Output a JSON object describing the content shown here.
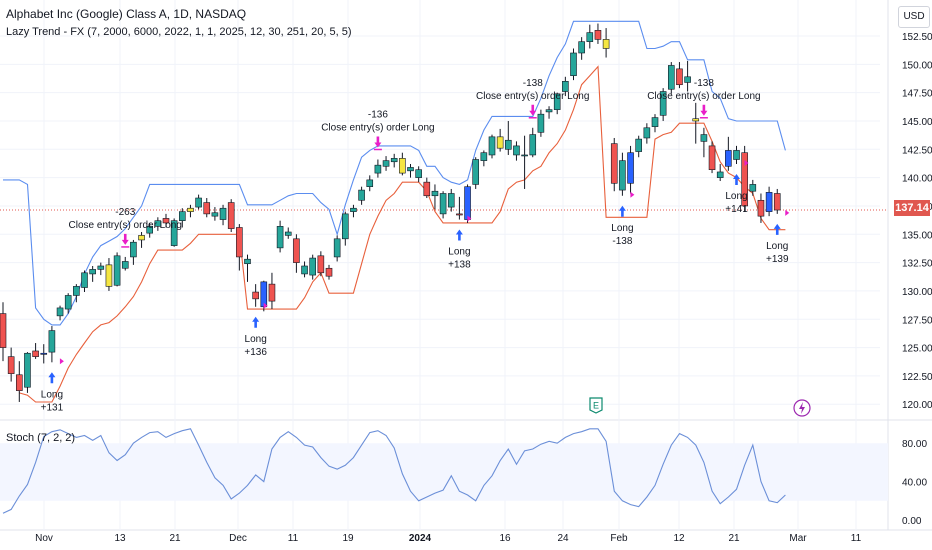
{
  "header": {
    "title": "Alphabet Inc (Google) Class A, 1D, NASDAQ",
    "indicator": "Lazy Trend - FX (7, 2000, 6000, 2022, 1, 1, 2025, 12, 30, 251, 20, 5, 5)",
    "stoch_label": "Stoch (7, 2, 2)",
    "currency": "USD",
    "last_price": "137.14"
  },
  "colors": {
    "up": "#26a69a",
    "down": "#ef5350",
    "blue_candle": "#2962ff",
    "yellow_candle": "#f5e642",
    "upper_band": "#5b8def",
    "lower_band": "#e8603c",
    "stoch_line": "#6b8fd8",
    "signal_up_arrow": "#2962ff",
    "signal_close_arrow": "#e91ec8",
    "grid": "#f0f3fa",
    "price_line": "#e0574f",
    "event_earnings": "#0c8a6e",
    "event_split": "#9c27b0"
  },
  "x_labels": [
    "Nov",
    "13",
    "21",
    "Dec",
    "11",
    "19",
    "2024",
    "16",
    "24",
    "Feb",
    "12",
    "21",
    "Mar",
    "11"
  ],
  "chart_data": {
    "type": "candlestick",
    "title": "Alphabet Inc (Google) Class A, 1D, NASDAQ",
    "yaxis": {
      "ticks": [
        120.0,
        122.5,
        125.0,
        127.5,
        130.0,
        132.5,
        135.0,
        137.5,
        140.0,
        142.5,
        145.0,
        147.5,
        150.0,
        152.5
      ],
      "range": [
        118.9,
        154.2
      ]
    },
    "candles": [
      {
        "o": 128.0,
        "h": 129.0,
        "l": 123.8,
        "c": 125.0,
        "t": "down"
      },
      {
        "o": 124.2,
        "h": 125.0,
        "l": 122.0,
        "c": 122.7,
        "t": "down"
      },
      {
        "o": 122.6,
        "h": 123.8,
        "l": 120.2,
        "c": 121.2,
        "t": "down"
      },
      {
        "o": 121.5,
        "h": 124.6,
        "l": 121.0,
        "c": 124.5,
        "t": "up"
      },
      {
        "o": 124.7,
        "h": 125.4,
        "l": 124.0,
        "c": 124.2,
        "t": "down"
      },
      {
        "o": 124.4,
        "h": 125.3,
        "l": 123.6,
        "c": 124.5,
        "t": "blue"
      },
      {
        "o": 124.6,
        "h": 126.9,
        "l": 123.7,
        "c": 126.5,
        "t": "up"
      },
      {
        "o": 127.8,
        "h": 128.7,
        "l": 127.4,
        "c": 128.5,
        "t": "up"
      },
      {
        "o": 128.4,
        "h": 129.8,
        "l": 128.0,
        "c": 129.6,
        "t": "up"
      },
      {
        "o": 129.6,
        "h": 130.6,
        "l": 129.0,
        "c": 130.4,
        "t": "up"
      },
      {
        "o": 130.3,
        "h": 131.8,
        "l": 129.9,
        "c": 131.6,
        "t": "up"
      },
      {
        "o": 131.5,
        "h": 132.2,
        "l": 130.8,
        "c": 131.9,
        "t": "up"
      },
      {
        "o": 131.9,
        "h": 132.5,
        "l": 131.4,
        "c": 132.2,
        "t": "up"
      },
      {
        "o": 132.3,
        "h": 132.9,
        "l": 130.0,
        "c": 130.4,
        "t": "yellow"
      },
      {
        "o": 130.5,
        "h": 133.4,
        "l": 130.4,
        "c": 133.1,
        "t": "up"
      },
      {
        "o": 132.0,
        "h": 133.0,
        "l": 131.8,
        "c": 132.6,
        "t": "up"
      },
      {
        "o": 133.0,
        "h": 134.5,
        "l": 132.3,
        "c": 134.3,
        "t": "up"
      },
      {
        "o": 134.5,
        "h": 135.2,
        "l": 133.8,
        "c": 134.9,
        "t": "yellow"
      },
      {
        "o": 135.1,
        "h": 136.0,
        "l": 134.7,
        "c": 135.7,
        "t": "up"
      },
      {
        "o": 135.7,
        "h": 136.5,
        "l": 135.3,
        "c": 136.2,
        "t": "up"
      },
      {
        "o": 136.4,
        "h": 136.8,
        "l": 135.6,
        "c": 136.0,
        "t": "down"
      },
      {
        "o": 134.0,
        "h": 136.4,
        "l": 133.9,
        "c": 136.2,
        "t": "up"
      },
      {
        "o": 136.2,
        "h": 137.3,
        "l": 135.6,
        "c": 137.0,
        "t": "up"
      },
      {
        "o": 137.0,
        "h": 137.6,
        "l": 136.5,
        "c": 137.3,
        "t": "yellow"
      },
      {
        "o": 137.4,
        "h": 138.5,
        "l": 137.2,
        "c": 138.2,
        "t": "up"
      },
      {
        "o": 137.8,
        "h": 138.2,
        "l": 136.5,
        "c": 136.8,
        "t": "down"
      },
      {
        "o": 136.9,
        "h": 137.4,
        "l": 136.2,
        "c": 136.6,
        "t": "up"
      },
      {
        "o": 136.3,
        "h": 137.6,
        "l": 135.8,
        "c": 137.3,
        "t": "up"
      },
      {
        "o": 137.8,
        "h": 138.1,
        "l": 135.2,
        "c": 135.5,
        "t": "down"
      },
      {
        "o": 135.6,
        "h": 135.9,
        "l": 131.8,
        "c": 133.0,
        "t": "down"
      },
      {
        "o": 132.8,
        "h": 133.2,
        "l": 130.8,
        "c": 132.4,
        "t": "up"
      },
      {
        "o": 129.9,
        "h": 130.6,
        "l": 128.6,
        "c": 129.3,
        "t": "down"
      },
      {
        "o": 128.6,
        "h": 130.9,
        "l": 128.2,
        "c": 130.8,
        "t": "blue"
      },
      {
        "o": 130.6,
        "h": 131.6,
        "l": 128.4,
        "c": 129.1,
        "t": "down"
      },
      {
        "o": 133.8,
        "h": 136.2,
        "l": 133.4,
        "c": 135.7,
        "t": "up"
      },
      {
        "o": 135.2,
        "h": 135.6,
        "l": 134.6,
        "c": 134.9,
        "t": "up"
      },
      {
        "o": 134.6,
        "h": 135.0,
        "l": 131.6,
        "c": 132.5,
        "t": "down"
      },
      {
        "o": 132.2,
        "h": 132.6,
        "l": 131.2,
        "c": 131.5,
        "t": "up"
      },
      {
        "o": 131.4,
        "h": 133.2,
        "l": 131.0,
        "c": 132.9,
        "t": "up"
      },
      {
        "o": 133.1,
        "h": 133.5,
        "l": 131.3,
        "c": 131.6,
        "t": "down"
      },
      {
        "o": 131.3,
        "h": 132.3,
        "l": 131.0,
        "c": 132.0,
        "t": "down"
      },
      {
        "o": 133.0,
        "h": 134.9,
        "l": 132.6,
        "c": 134.6,
        "t": "up"
      },
      {
        "o": 134.6,
        "h": 137.0,
        "l": 134.0,
        "c": 136.8,
        "t": "up"
      },
      {
        "o": 137.0,
        "h": 137.6,
        "l": 136.5,
        "c": 137.3,
        "t": "up"
      },
      {
        "o": 138.0,
        "h": 139.2,
        "l": 137.6,
        "c": 138.9,
        "t": "up"
      },
      {
        "o": 139.2,
        "h": 140.2,
        "l": 138.8,
        "c": 139.8,
        "t": "up"
      },
      {
        "o": 140.4,
        "h": 141.6,
        "l": 140.0,
        "c": 141.1,
        "t": "up"
      },
      {
        "o": 141.0,
        "h": 141.9,
        "l": 140.6,
        "c": 141.5,
        "t": "up"
      },
      {
        "o": 141.4,
        "h": 142.1,
        "l": 140.9,
        "c": 141.7,
        "t": "up"
      },
      {
        "o": 141.7,
        "h": 142.2,
        "l": 140.2,
        "c": 140.4,
        "t": "yellow"
      },
      {
        "o": 140.6,
        "h": 141.2,
        "l": 140.0,
        "c": 140.9,
        "t": "up"
      },
      {
        "o": 140.7,
        "h": 141.0,
        "l": 139.6,
        "c": 140.0,
        "t": "up"
      },
      {
        "o": 139.6,
        "h": 140.0,
        "l": 138.2,
        "c": 138.4,
        "t": "down"
      },
      {
        "o": 138.4,
        "h": 139.4,
        "l": 137.2,
        "c": 138.8,
        "t": "up"
      },
      {
        "o": 138.6,
        "h": 138.8,
        "l": 136.4,
        "c": 136.8,
        "t": "up"
      },
      {
        "o": 137.4,
        "h": 139.0,
        "l": 137.0,
        "c": 138.6,
        "t": "up"
      },
      {
        "o": 136.8,
        "h": 138.3,
        "l": 136.3,
        "c": 136.7,
        "t": "down"
      },
      {
        "o": 136.3,
        "h": 139.4,
        "l": 136.0,
        "c": 139.2,
        "t": "blue"
      },
      {
        "o": 139.4,
        "h": 141.8,
        "l": 139.0,
        "c": 141.6,
        "t": "up"
      },
      {
        "o": 141.5,
        "h": 142.4,
        "l": 141.0,
        "c": 142.2,
        "t": "up"
      },
      {
        "o": 142.0,
        "h": 143.8,
        "l": 141.7,
        "c": 143.6,
        "t": "up"
      },
      {
        "o": 143.6,
        "h": 144.3,
        "l": 142.3,
        "c": 142.6,
        "t": "yellow"
      },
      {
        "o": 142.5,
        "h": 145.0,
        "l": 142.0,
        "c": 143.3,
        "t": "up"
      },
      {
        "o": 142.8,
        "h": 143.2,
        "l": 141.5,
        "c": 142.0,
        "t": "up"
      },
      {
        "o": 142.0,
        "h": 143.7,
        "l": 139.0,
        "c": 142.0,
        "t": "up"
      },
      {
        "o": 142.0,
        "h": 144.4,
        "l": 141.8,
        "c": 143.8,
        "t": "up"
      },
      {
        "o": 144.0,
        "h": 146.0,
        "l": 143.6,
        "c": 145.6,
        "t": "up"
      },
      {
        "o": 145.8,
        "h": 146.3,
        "l": 145.2,
        "c": 146.0,
        "t": "up"
      },
      {
        "o": 146.0,
        "h": 147.5,
        "l": 145.6,
        "c": 147.4,
        "t": "up"
      },
      {
        "o": 147.6,
        "h": 148.9,
        "l": 147.2,
        "c": 148.5,
        "t": "up"
      },
      {
        "o": 149.0,
        "h": 151.4,
        "l": 148.6,
        "c": 151.0,
        "t": "up"
      },
      {
        "o": 151.0,
        "h": 152.4,
        "l": 150.4,
        "c": 152.0,
        "t": "up"
      },
      {
        "o": 152.0,
        "h": 153.5,
        "l": 151.4,
        "c": 152.8,
        "t": "up"
      },
      {
        "o": 153.0,
        "h": 153.6,
        "l": 151.8,
        "c": 152.2,
        "t": "down"
      },
      {
        "o": 152.2,
        "h": 153.2,
        "l": 150.6,
        "c": 151.4,
        "t": "yellow"
      },
      {
        "o": 143.0,
        "h": 143.5,
        "l": 138.8,
        "c": 139.5,
        "t": "down"
      },
      {
        "o": 138.9,
        "h": 142.2,
        "l": 138.4,
        "c": 141.5,
        "t": "up"
      },
      {
        "o": 139.5,
        "h": 142.8,
        "l": 138.6,
        "c": 142.2,
        "t": "blue"
      },
      {
        "o": 142.3,
        "h": 143.7,
        "l": 141.8,
        "c": 143.4,
        "t": "up"
      },
      {
        "o": 143.5,
        "h": 144.8,
        "l": 143.0,
        "c": 144.4,
        "t": "up"
      },
      {
        "o": 144.5,
        "h": 145.6,
        "l": 144.0,
        "c": 145.3,
        "t": "up"
      },
      {
        "o": 145.5,
        "h": 147.9,
        "l": 145.0,
        "c": 147.6,
        "t": "up"
      },
      {
        "o": 147.8,
        "h": 150.2,
        "l": 147.4,
        "c": 149.9,
        "t": "up"
      },
      {
        "o": 149.6,
        "h": 150.2,
        "l": 147.9,
        "c": 148.2,
        "t": "down"
      },
      {
        "o": 148.4,
        "h": 150.3,
        "l": 147.6,
        "c": 148.9,
        "t": "up"
      },
      {
        "o": 145.0,
        "h": 146.6,
        "l": 143.0,
        "c": 145.2,
        "t": "yellow"
      },
      {
        "o": 143.8,
        "h": 144.4,
        "l": 141.8,
        "c": 143.2,
        "t": "up"
      },
      {
        "o": 142.8,
        "h": 143.2,
        "l": 140.4,
        "c": 140.7,
        "t": "down"
      },
      {
        "o": 140.5,
        "h": 141.2,
        "l": 139.7,
        "c": 140.0,
        "t": "up"
      },
      {
        "o": 141.0,
        "h": 143.6,
        "l": 140.6,
        "c": 142.4,
        "t": "blue"
      },
      {
        "o": 142.4,
        "h": 142.8,
        "l": 141.2,
        "c": 141.6,
        "t": "up"
      },
      {
        "o": 142.2,
        "h": 142.8,
        "l": 137.0,
        "c": 137.5,
        "t": "down"
      },
      {
        "o": 138.8,
        "h": 139.8,
        "l": 138.4,
        "c": 139.4,
        "t": "up"
      },
      {
        "o": 138.0,
        "h": 138.6,
        "l": 136.0,
        "c": 136.6,
        "t": "down"
      },
      {
        "o": 137.0,
        "h": 139.2,
        "l": 136.6,
        "c": 138.7,
        "t": "blue"
      },
      {
        "o": 138.6,
        "h": 139.0,
        "l": 136.8,
        "c": 137.14,
        "t": "down"
      }
    ],
    "upper_band": [
      139.8,
      139.8,
      139.8,
      139.4,
      128.5,
      127.5,
      127.0,
      127.0,
      128.0,
      129.5,
      131.5,
      133.0,
      134.0,
      134.4,
      134.8,
      135.5,
      136.5,
      137.5,
      139.4,
      139.4,
      139.4,
      139.4,
      139.4,
      139.4,
      139.4,
      139.4,
      139.4,
      139.4,
      139.4,
      139.4,
      137.6,
      137.6,
      137.6,
      137.6,
      138.0,
      138.4,
      138.6,
      138.6,
      138.6,
      137.8,
      137.2,
      135.0,
      137.6,
      139.8,
      141.8,
      142.4,
      142.8,
      142.8,
      142.8,
      142.8,
      142.8,
      142.4,
      141.0,
      141.0,
      140.0,
      139.6,
      139.4,
      139.8,
      142.4,
      144.2,
      145.4,
      145.4,
      145.4,
      145.4,
      145.4,
      145.4,
      147.0,
      149.0,
      150.6,
      151.8,
      153.8,
      153.8,
      153.8,
      153.8,
      153.8,
      153.8,
      153.8,
      153.8,
      153.8,
      151.4,
      151.4,
      151.6,
      152.0,
      152.0,
      150.4,
      150.4,
      150.4,
      147.6,
      147.0,
      145.2,
      145.0,
      145.0,
      145.0,
      145.0,
      145.0,
      145.0,
      142.4
    ],
    "lower_band": [
      null,
      null,
      121.0,
      120.8,
      120.2,
      120.2,
      120.2,
      121.6,
      123.2,
      124.4,
      125.4,
      126.4,
      127.0,
      127.2,
      127.8,
      128.6,
      129.5,
      130.8,
      132.4,
      133.6,
      133.6,
      133.6,
      133.6,
      134.2,
      135.0,
      135.0,
      135.0,
      135.0,
      135.0,
      135.0,
      128.4,
      128.4,
      128.4,
      128.4,
      128.4,
      128.4,
      128.4,
      129.4,
      130.8,
      131.6,
      129.8,
      129.8,
      129.8,
      129.8,
      132.4,
      135.0,
      136.6,
      138.0,
      138.6,
      139.6,
      139.6,
      139.6,
      138.8,
      137.0,
      136.0,
      136.0,
      136.0,
      136.0,
      136.0,
      136.0,
      136.0,
      137.0,
      139.0,
      139.6,
      139.8,
      140.6,
      141.0,
      142.2,
      143.0,
      144.2,
      146.0,
      148.2,
      149.0,
      149.8,
      136.5,
      136.5,
      136.5,
      136.5,
      136.5,
      136.5,
      143.4,
      143.8,
      144.0,
      144.8,
      144.8,
      144.8,
      144.8,
      143.2,
      141.4,
      140.4,
      140.0,
      139.2,
      138.6,
      136.4,
      135.4,
      135.4,
      135.4
    ],
    "stoch": [
      7,
      11,
      25,
      37,
      60,
      87,
      92,
      94,
      90,
      86,
      88,
      83,
      88,
      70,
      62,
      68,
      80,
      86,
      91,
      92,
      86,
      90,
      93,
      95,
      78,
      60,
      44,
      36,
      22,
      28,
      36,
      47,
      40,
      74,
      86,
      92,
      86,
      78,
      76,
      65,
      56,
      53,
      57,
      65,
      78,
      91,
      93,
      88,
      75,
      48,
      30,
      20,
      24,
      28,
      31,
      46,
      30,
      26,
      20,
      36,
      46,
      62,
      74,
      58,
      72,
      74,
      79,
      82,
      80,
      86,
      90,
      92,
      95,
      95,
      82,
      30,
      20,
      16,
      14,
      24,
      36,
      58,
      78,
      90,
      86,
      78,
      60,
      30,
      17,
      24,
      32,
      57,
      78,
      40,
      20,
      18,
      26
    ],
    "stoch_axis": {
      "ticks": [
        0.0,
        40.0,
        80.0
      ],
      "midline": 50.0,
      "range": [
        -1,
        100
      ]
    },
    "trades": [
      {
        "i": 6,
        "kind": "long",
        "label": "Long",
        "value": "+131"
      },
      {
        "i": 31,
        "kind": "long",
        "label": "Long",
        "value": "+136"
      },
      {
        "i": 56,
        "kind": "long",
        "label": "Long",
        "value": "+138"
      },
      {
        "i": 76,
        "kind": "long",
        "label": "Long",
        "value": "-138"
      },
      {
        "i": 90,
        "kind": "long",
        "label": "Long",
        "value": "+141"
      },
      {
        "i": 95,
        "kind": "long",
        "label": "Long",
        "value": "+139"
      },
      {
        "i": 15,
        "kind": "close",
        "label": "Close entry(s) order Long",
        "value": "-263"
      },
      {
        "i": 46,
        "kind": "close",
        "label": "Close entry(s) order Long",
        "value": "-136"
      },
      {
        "i": 65,
        "kind": "close",
        "label": "Close entry(s) order Long",
        "value": "-138"
      },
      {
        "i": 86,
        "kind": "close",
        "label": "Close entry(s) order Long",
        "value": "-138"
      }
    ],
    "events": [
      {
        "i": 76,
        "symbol": "E"
      },
      {
        "i": 99,
        "symbol": "⚡"
      }
    ]
  }
}
